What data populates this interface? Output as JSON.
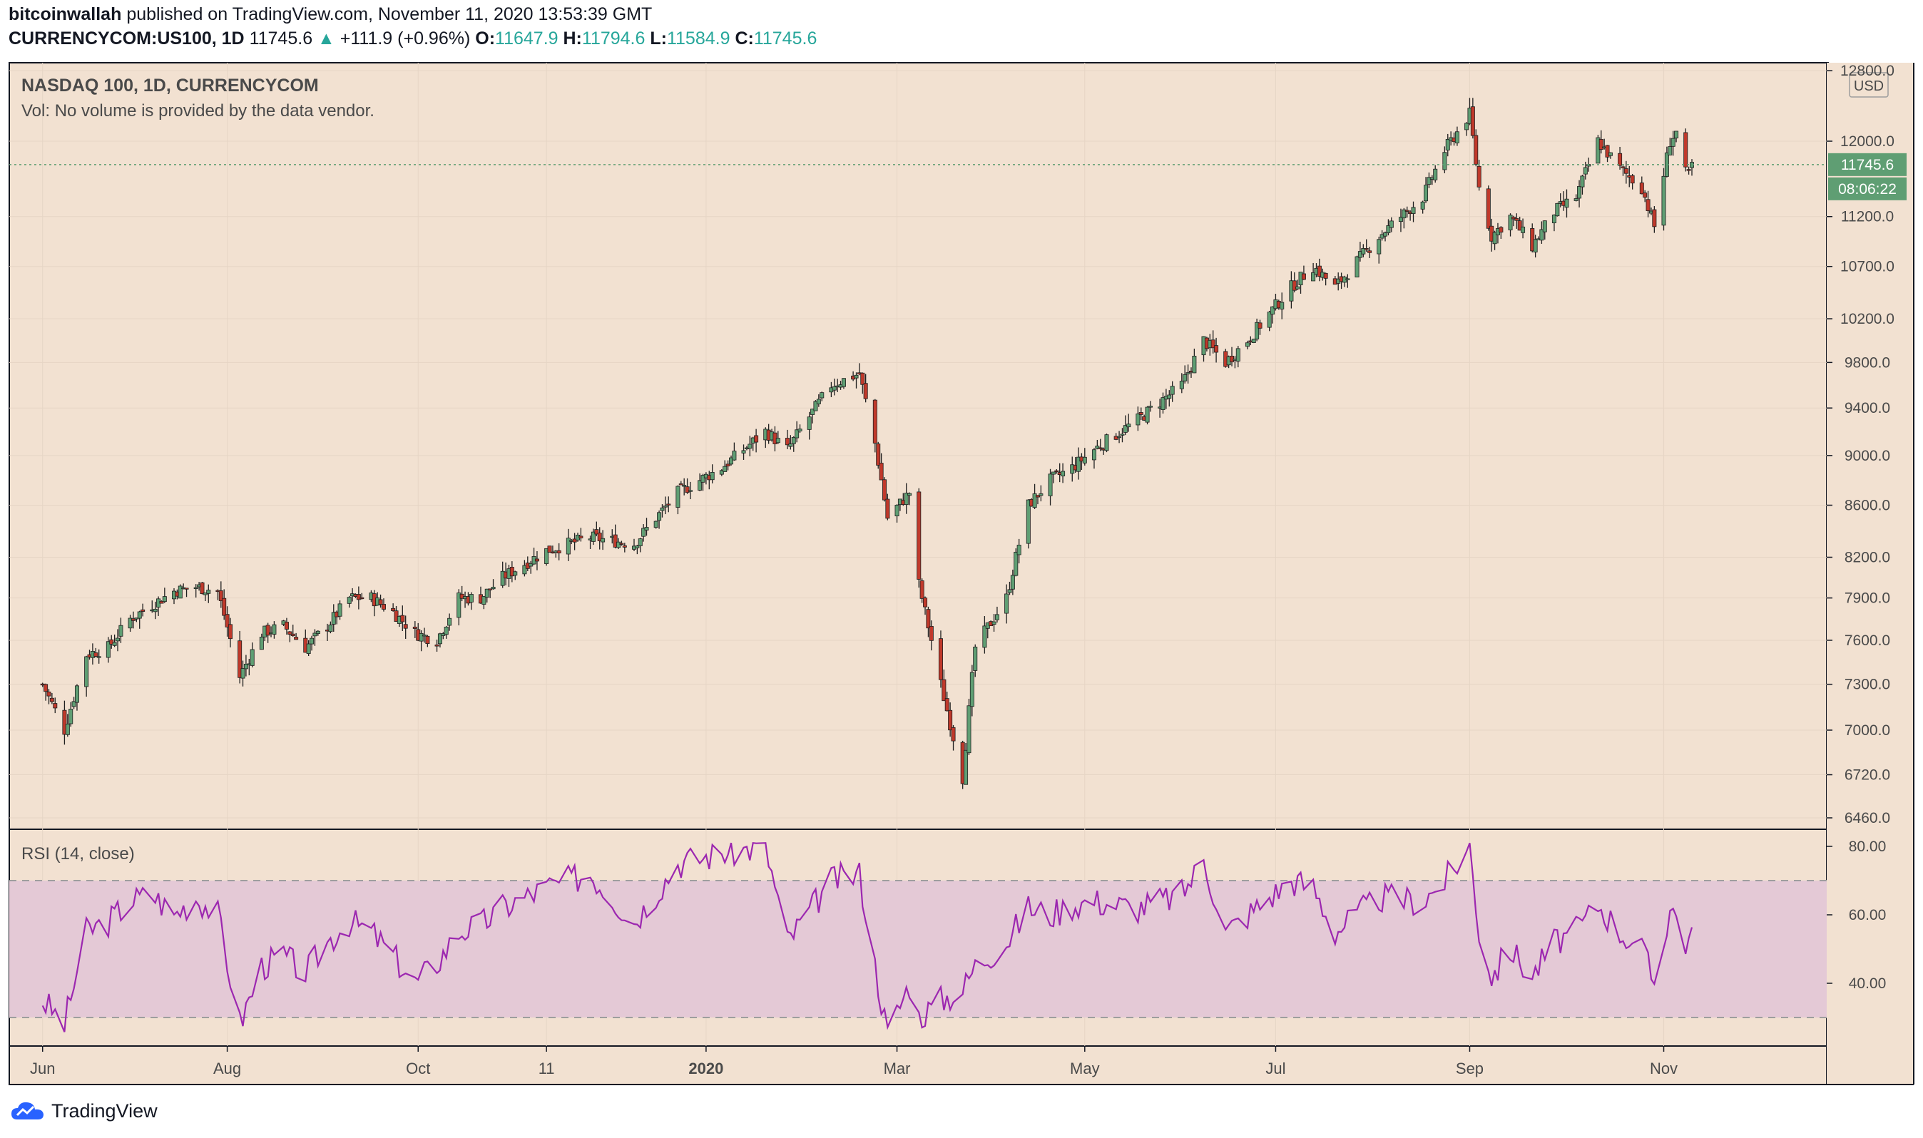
{
  "header": {
    "author": "bitcoinwallah",
    "published": "published on TradingView.com, November 11, 2020 13:53:39 GMT"
  },
  "quote": {
    "symbol": "CURRENCYCOM:US100, 1D",
    "last": "11745.6",
    "change": "+111.9 (+0.96%)",
    "o_label": "O:",
    "o": "11647.9",
    "h_label": "H:",
    "h": "11794.6",
    "l_label": "L:",
    "l": "11584.9",
    "c_label": "C:",
    "c": "11745.6"
  },
  "price_pane": {
    "title": "NASDAQ 100, 1D, CURRENCYCOM",
    "vol_note": "Vol: No volume is provided by the data vendor.",
    "currency": "USD",
    "last_price_label": "11745.6",
    "countdown": "08:06:22"
  },
  "rsi_pane": {
    "title": "RSI (14, close)"
  },
  "branding": {
    "name": "TradingView"
  },
  "colors": {
    "background": "#f2e1d1",
    "up": "#26a69a",
    "up_body": "#5f9e73",
    "down": "#c0392b",
    "rsi_line": "#9c27b0",
    "rsi_band": "#e4c9d6",
    "last_price_bg": "#5f9e73"
  },
  "chart_data": [
    {
      "type": "candlestick",
      "title": "NASDAQ 100, 1D, CURRENCYCOM",
      "y_ticks": [
        "12800.0",
        "12000.0",
        "11200.0",
        "10700.0",
        "10200.0",
        "9800.0",
        "9400.0",
        "9000.0",
        "8600.0",
        "8200.0",
        "7900.0",
        "7600.0",
        "7300.0",
        "7000.0",
        "6720.0",
        "6460.0"
      ],
      "x_ticks": [
        "Jun",
        "Aug",
        "Oct",
        "11",
        "2020",
        "Mar",
        "May",
        "Jul",
        "Sep",
        "Nov"
      ],
      "ylim": [
        6380,
        12900
      ],
      "scale": "log",
      "last_close": 11745.6,
      "close_path": [
        [
          "2019-06-03",
          7300
        ],
        [
          "2019-06-10",
          7000
        ],
        [
          "2019-06-17",
          7500
        ],
        [
          "2019-06-24",
          7550
        ],
        [
          "2019-07-01",
          7750
        ],
        [
          "2019-07-08",
          7850
        ],
        [
          "2019-07-15",
          7950
        ],
        [
          "2019-07-22",
          7980
        ],
        [
          "2019-07-29",
          7950
        ],
        [
          "2019-08-05",
          7350
        ],
        [
          "2019-08-12",
          7650
        ],
        [
          "2019-08-19",
          7700
        ],
        [
          "2019-08-26",
          7550
        ],
        [
          "2019-09-02",
          7700
        ],
        [
          "2019-09-09",
          7900
        ],
        [
          "2019-09-16",
          7900
        ],
        [
          "2019-09-23",
          7800
        ],
        [
          "2019-09-30",
          7650
        ],
        [
          "2019-10-07",
          7600
        ],
        [
          "2019-10-14",
          7900
        ],
        [
          "2019-10-21",
          7900
        ],
        [
          "2019-10-28",
          8050
        ],
        [
          "2019-11-11",
          8250
        ],
        [
          "2019-11-25",
          8350
        ],
        [
          "2019-12-09",
          8300
        ],
        [
          "2019-12-23",
          8700
        ],
        [
          "2020-01-06",
          8900
        ],
        [
          "2020-01-20",
          9200
        ],
        [
          "2020-01-27",
          9050
        ],
        [
          "2020-02-10",
          9600
        ],
        [
          "2020-02-19",
          9700
        ],
        [
          "2020-02-24",
          9100
        ],
        [
          "2020-02-28",
          8500
        ],
        [
          "2020-03-06",
          8700
        ],
        [
          "2020-03-09",
          8000
        ],
        [
          "2020-03-16",
          7300
        ],
        [
          "2020-03-23",
          6700
        ],
        [
          "2020-03-27",
          7550
        ],
        [
          "2020-04-06",
          7900
        ],
        [
          "2020-04-13",
          8600
        ],
        [
          "2020-04-20",
          8800
        ],
        [
          "2020-04-27",
          8900
        ],
        [
          "2020-05-04",
          9050
        ],
        [
          "2020-05-18",
          9300
        ],
        [
          "2020-06-01",
          9600
        ],
        [
          "2020-06-08",
          10000
        ],
        [
          "2020-06-15",
          9800
        ],
        [
          "2020-06-22",
          10000
        ],
        [
          "2020-07-06",
          10500
        ],
        [
          "2020-07-13",
          10700
        ],
        [
          "2020-07-20",
          10500
        ],
        [
          "2020-08-03",
          11000
        ],
        [
          "2020-08-17",
          11400
        ],
        [
          "2020-08-24",
          11900
        ],
        [
          "2020-09-01",
          12300
        ],
        [
          "2020-09-04",
          11500
        ],
        [
          "2020-09-08",
          11000
        ],
        [
          "2020-09-14",
          11200
        ],
        [
          "2020-09-21",
          10900
        ],
        [
          "2020-09-28",
          11250
        ],
        [
          "2020-10-05",
          11400
        ],
        [
          "2020-10-12",
          12000
        ],
        [
          "2020-10-19",
          11700
        ],
        [
          "2020-10-26",
          11500
        ],
        [
          "2020-10-30",
          11100
        ],
        [
          "2020-11-04",
          12000
        ],
        [
          "2020-11-06",
          12100
        ],
        [
          "2020-11-09",
          11650
        ],
        [
          "2020-11-10",
          11634
        ],
        [
          "2020-11-11",
          11745.6
        ]
      ]
    },
    {
      "type": "line",
      "title": "RSI (14, close)",
      "y_ticks": [
        "80.00",
        "60.00",
        "40.00"
      ],
      "ylim": [
        22,
        82
      ],
      "bands": [
        30,
        70
      ],
      "path": [
        [
          "2019-06-03",
          35
        ],
        [
          "2019-06-10",
          28
        ],
        [
          "2019-06-17",
          55
        ],
        [
          "2019-06-24",
          58
        ],
        [
          "2019-07-01",
          64
        ],
        [
          "2019-07-08",
          66
        ],
        [
          "2019-07-15",
          60
        ],
        [
          "2019-07-22",
          65
        ],
        [
          "2019-07-29",
          60
        ],
        [
          "2019-08-05",
          28
        ],
        [
          "2019-08-12",
          45
        ],
        [
          "2019-08-19",
          48
        ],
        [
          "2019-08-26",
          43
        ],
        [
          "2019-09-02",
          52
        ],
        [
          "2019-09-09",
          58
        ],
        [
          "2019-09-16",
          55
        ],
        [
          "2019-09-23",
          48
        ],
        [
          "2019-09-30",
          40
        ],
        [
          "2019-10-07",
          46
        ],
        [
          "2019-10-14",
          55
        ],
        [
          "2019-10-21",
          57
        ],
        [
          "2019-10-28",
          62
        ],
        [
          "2019-11-11",
          68
        ],
        [
          "2019-11-25",
          72
        ],
        [
          "2019-12-09",
          58
        ],
        [
          "2019-12-23",
          75
        ],
        [
          "2020-01-06",
          78
        ],
        [
          "2020-01-20",
          80
        ],
        [
          "2020-01-27",
          52
        ],
        [
          "2020-02-10",
          70
        ],
        [
          "2020-02-19",
          72
        ],
        [
          "2020-02-24",
          45
        ],
        [
          "2020-02-28",
          25
        ],
        [
          "2020-03-06",
          40
        ],
        [
          "2020-03-09",
          30
        ],
        [
          "2020-03-16",
          35
        ],
        [
          "2020-03-23",
          38
        ],
        [
          "2020-03-27",
          45
        ],
        [
          "2020-04-06",
          52
        ],
        [
          "2020-04-13",
          62
        ],
        [
          "2020-04-20",
          60
        ],
        [
          "2020-04-27",
          63
        ],
        [
          "2020-05-04",
          64
        ],
        [
          "2020-05-18",
          62
        ],
        [
          "2020-06-01",
          66
        ],
        [
          "2020-06-08",
          76
        ],
        [
          "2020-06-15",
          55
        ],
        [
          "2020-06-22",
          60
        ],
        [
          "2020-07-06",
          70
        ],
        [
          "2020-07-13",
          68
        ],
        [
          "2020-07-20",
          55
        ],
        [
          "2020-08-03",
          65
        ],
        [
          "2020-08-17",
          64
        ],
        [
          "2020-08-24",
          70
        ],
        [
          "2020-09-01",
          80
        ],
        [
          "2020-09-04",
          55
        ],
        [
          "2020-09-08",
          42
        ],
        [
          "2020-09-14",
          50
        ],
        [
          "2020-09-21",
          42
        ],
        [
          "2020-09-28",
          52
        ],
        [
          "2020-10-05",
          55
        ],
        [
          "2020-10-12",
          63
        ],
        [
          "2020-10-19",
          55
        ],
        [
          "2020-10-26",
          50
        ],
        [
          "2020-10-30",
          40
        ],
        [
          "2020-11-04",
          62
        ],
        [
          "2020-11-06",
          60
        ],
        [
          "2020-11-09",
          52
        ],
        [
          "2020-11-11",
          53
        ]
      ]
    }
  ]
}
